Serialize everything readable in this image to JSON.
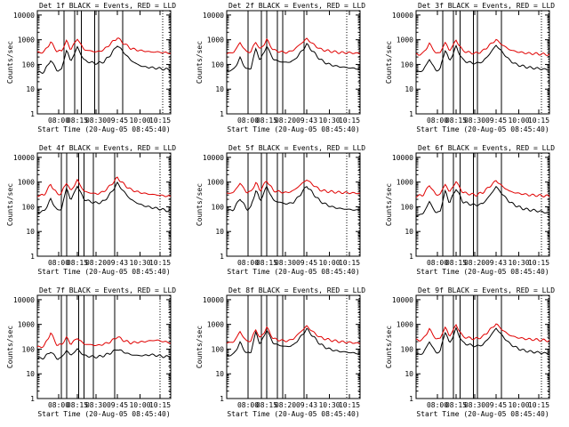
{
  "figure": {
    "start_time_label": "Start Time (20-Aug-05 08:45:40)",
    "ylabel": "Counts/sec",
    "y_ticks": [
      "1",
      "10",
      "100",
      "1000",
      "10000"
    ],
    "x_ticks": [
      "08:00",
      "08:15",
      "08:30",
      "09:45",
      "10:00",
      "10:15"
    ],
    "x_ticks_alt": [
      "08:00",
      "08:15",
      "08:20",
      "09:43",
      "10:30",
      "10:15"
    ],
    "colors": {
      "events": "#000000",
      "lld": "#e00000"
    }
  },
  "chart_data": [
    {
      "type": "line",
      "title": "Det 1f BLACK = Events, RED = LLD",
      "ylim": [
        1,
        15000
      ],
      "yscale": "log",
      "xlabel": "Start Time (20-Aug-05 08:45:40)",
      "ylabel": "Counts/sec",
      "x": [
        0,
        0.05,
        0.1,
        0.15,
        0.18,
        0.22,
        0.25,
        0.3,
        0.35,
        0.4,
        0.45,
        0.5,
        0.55,
        0.6,
        0.65,
        0.7,
        0.75,
        0.8,
        0.85,
        0.9,
        0.95,
        1
      ],
      "series": [
        {
          "name": "Events",
          "color": "#000000",
          "values": [
            45,
            50,
            150,
            55,
            60,
            400,
            130,
            500,
            150,
            120,
            110,
            130,
            250,
            600,
            300,
            150,
            100,
            80,
            75,
            70,
            65,
            60
          ]
        },
        {
          "name": "LLD",
          "color": "#e00000",
          "values": [
            300,
            320,
            800,
            330,
            350,
            900,
            400,
            1100,
            400,
            350,
            320,
            400,
            700,
            1200,
            700,
            450,
            380,
            350,
            320,
            320,
            300,
            290
          ]
        }
      ],
      "vlines": [
        0.2,
        0.28,
        0.33,
        0.43,
        0.46,
        0.64,
        0.94
      ]
    },
    {
      "type": "line",
      "title": "Det 2f BLACK = Events, RED = LLD",
      "ylim": [
        1,
        15000
      ],
      "yscale": "log",
      "xlabel": "Start Time (20-Aug-05 08:45:40)",
      "ylabel": "Counts/sec",
      "x": [
        0,
        0.05,
        0.1,
        0.15,
        0.18,
        0.22,
        0.25,
        0.3,
        0.35,
        0.4,
        0.45,
        0.5,
        0.55,
        0.6,
        0.65,
        0.7,
        0.75,
        0.8,
        0.85,
        0.9,
        0.95,
        1
      ],
      "series": [
        {
          "name": "Events",
          "color": "#000000",
          "values": [
            55,
            60,
            180,
            60,
            70,
            450,
            140,
            550,
            160,
            130,
            120,
            140,
            280,
            650,
            320,
            160,
            110,
            90,
            80,
            75,
            70,
            65
          ]
        },
        {
          "name": "LLD",
          "color": "#e00000",
          "values": [
            280,
            300,
            750,
            310,
            330,
            850,
            380,
            1000,
            380,
            330,
            300,
            380,
            650,
            1100,
            650,
            420,
            360,
            330,
            300,
            300,
            290,
            280
          ]
        }
      ],
      "vlines": [
        0.16,
        0.26,
        0.3,
        0.38,
        0.42,
        0.58,
        0.9
      ]
    },
    {
      "type": "line",
      "title": "Det 3f BLACK = Events, RED = LLD",
      "ylim": [
        1,
        15000
      ],
      "yscale": "log",
      "xlabel": "Start Time (20-Aug-05 08:45:40)",
      "ylabel": "Counts/sec",
      "x": [
        0,
        0.05,
        0.1,
        0.15,
        0.18,
        0.22,
        0.25,
        0.3,
        0.35,
        0.4,
        0.45,
        0.5,
        0.55,
        0.6,
        0.65,
        0.7,
        0.75,
        0.8,
        0.85,
        0.9,
        0.95,
        1
      ],
      "series": [
        {
          "name": "Events",
          "color": "#000000",
          "values": [
            50,
            55,
            160,
            55,
            65,
            420,
            130,
            520,
            150,
            120,
            110,
            130,
            260,
            600,
            300,
            150,
            100,
            85,
            75,
            70,
            65,
            60
          ]
        },
        {
          "name": "LLD",
          "color": "#e00000",
          "values": [
            250,
            270,
            700,
            280,
            300,
            800,
            350,
            950,
            360,
            300,
            280,
            350,
            600,
            1000,
            600,
            400,
            330,
            300,
            280,
            270,
            260,
            250
          ]
        }
      ],
      "vlines": [
        0.2,
        0.28,
        0.33,
        0.43,
        0.46,
        0.64,
        0.94
      ]
    },
    {
      "type": "line",
      "title": "Det 4f BLACK = Events, RED = LLD",
      "ylim": [
        1,
        15000
      ],
      "yscale": "log",
      "xlabel": "Start Time (20-Aug-05 08:45:40)",
      "ylabel": "Counts/sec",
      "x": [
        0,
        0.05,
        0.1,
        0.15,
        0.18,
        0.22,
        0.25,
        0.3,
        0.35,
        0.4,
        0.45,
        0.5,
        0.55,
        0.6,
        0.65,
        0.7,
        0.75,
        0.8,
        0.85,
        0.9,
        0.95,
        1
      ],
      "series": [
        {
          "name": "Events",
          "color": "#000000",
          "values": [
            60,
            65,
            200,
            70,
            80,
            600,
            180,
            700,
            200,
            160,
            140,
            170,
            350,
            900,
            400,
            200,
            140,
            110,
            95,
            85,
            75,
            65
          ]
        },
        {
          "name": "LLD",
          "color": "#e00000",
          "values": [
            280,
            300,
            800,
            320,
            350,
            1000,
            420,
            1200,
            420,
            360,
            330,
            420,
            750,
            1500,
            800,
            500,
            400,
            350,
            320,
            300,
            280,
            260
          ]
        }
      ],
      "vlines": [
        0.18,
        0.22,
        0.31,
        0.35,
        0.42,
        0.58,
        0.92
      ]
    },
    {
      "type": "line",
      "title": "Det 5f BLACK = Events, RED = LLD",
      "ylim": [
        1,
        15000
      ],
      "yscale": "log",
      "xlabel": "Start Time (20-Aug-05 08:45:40)",
      "ylabel": "Counts/sec",
      "x": [
        0,
        0.05,
        0.1,
        0.15,
        0.18,
        0.22,
        0.25,
        0.3,
        0.35,
        0.4,
        0.45,
        0.5,
        0.55,
        0.6,
        0.65,
        0.7,
        0.75,
        0.8,
        0.85,
        0.9,
        0.95,
        1
      ],
      "series": [
        {
          "name": "Events",
          "color": "#000000",
          "values": [
            70,
            75,
            220,
            80,
            90,
            500,
            170,
            650,
            180,
            150,
            130,
            150,
            300,
            700,
            330,
            170,
            120,
            95,
            85,
            80,
            75,
            70
          ]
        },
        {
          "name": "LLD",
          "color": "#e00000",
          "values": [
            350,
            370,
            900,
            380,
            400,
            950,
            450,
            1150,
            450,
            400,
            370,
            450,
            750,
            1250,
            750,
            480,
            420,
            400,
            380,
            370,
            360,
            350
          ]
        }
      ],
      "vlines": [
        0.16,
        0.26,
        0.3,
        0.38,
        0.42,
        0.58,
        0.9
      ]
    },
    {
      "type": "line",
      "title": "Det 6f BLACK = Events, RED = LLD",
      "ylim": [
        1,
        15000
      ],
      "yscale": "log",
      "xlabel": "Start Time (20-Aug-05 08:45:40)",
      "ylabel": "Counts/sec",
      "x": [
        0,
        0.05,
        0.1,
        0.15,
        0.18,
        0.22,
        0.25,
        0.3,
        0.35,
        0.4,
        0.45,
        0.5,
        0.55,
        0.6,
        0.65,
        0.7,
        0.75,
        0.8,
        0.85,
        0.9,
        0.95,
        1
      ],
      "series": [
        {
          "name": "Events",
          "color": "#000000",
          "values": [
            45,
            50,
            160,
            55,
            65,
            450,
            140,
            550,
            160,
            130,
            115,
            135,
            270,
            650,
            310,
            160,
            110,
            85,
            75,
            70,
            62,
            55
          ]
        },
        {
          "name": "LLD",
          "color": "#e00000",
          "values": [
            270,
            290,
            750,
            300,
            320,
            850,
            380,
            1050,
            380,
            330,
            300,
            380,
            650,
            1150,
            650,
            430,
            360,
            330,
            300,
            290,
            280,
            270
          ]
        }
      ],
      "vlines": [
        0.2,
        0.28,
        0.33,
        0.43,
        0.46,
        0.64,
        0.94
      ]
    },
    {
      "type": "line",
      "title": "Det 7f BLACK = Events, RED = LLD",
      "ylim": [
        1,
        15000
      ],
      "yscale": "log",
      "xlabel": "Start Time (20-Aug-05 08:45:40)",
      "ylabel": "Counts/sec",
      "x": [
        0,
        0.05,
        0.1,
        0.15,
        0.18,
        0.22,
        0.25,
        0.3,
        0.35,
        0.4,
        0.45,
        0.5,
        0.55,
        0.6,
        0.65,
        0.7,
        0.75,
        0.8,
        0.85,
        0.9,
        0.95,
        1
      ],
      "series": [
        {
          "name": "Events",
          "color": "#000000",
          "values": [
            40,
            45,
            80,
            40,
            45,
            90,
            55,
            100,
            55,
            50,
            48,
            55,
            70,
            100,
            75,
            60,
            55,
            55,
            60,
            55,
            50,
            48
          ]
        },
        {
          "name": "LLD",
          "color": "#e00000",
          "values": [
            120,
            130,
            450,
            140,
            150,
            300,
            160,
            280,
            160,
            150,
            140,
            160,
            200,
            320,
            220,
            180,
            190,
            200,
            220,
            230,
            200,
            180
          ]
        }
      ],
      "vlines": [
        0.18,
        0.22,
        0.31,
        0.35,
        0.42,
        0.58,
        0.92
      ]
    },
    {
      "type": "line",
      "title": "Det 8f BLACK = Events, RED = LLD",
      "ylim": [
        1,
        15000
      ],
      "yscale": "log",
      "xlabel": "Start Time (20-Aug-05 08:45:40)",
      "ylabel": "Counts/sec",
      "x": [
        0,
        0.05,
        0.1,
        0.15,
        0.18,
        0.22,
        0.25,
        0.3,
        0.35,
        0.4,
        0.45,
        0.5,
        0.55,
        0.6,
        0.65,
        0.7,
        0.75,
        0.8,
        0.85,
        0.9,
        0.95,
        1
      ],
      "series": [
        {
          "name": "Events",
          "color": "#000000",
          "values": [
            55,
            60,
            180,
            65,
            75,
            500,
            150,
            600,
            170,
            140,
            125,
            145,
            290,
            650,
            320,
            160,
            110,
            90,
            80,
            75,
            70,
            65
          ]
        },
        {
          "name": "LLD",
          "color": "#e00000",
          "values": [
            180,
            190,
            500,
            200,
            220,
            650,
            260,
            750,
            260,
            230,
            210,
            260,
            480,
            850,
            480,
            300,
            250,
            220,
            200,
            190,
            180,
            170
          ]
        }
      ],
      "vlines": [
        0.16,
        0.26,
        0.3,
        0.38,
        0.42,
        0.58,
        0.9
      ]
    },
    {
      "type": "line",
      "title": "Det 9f BLACK = Events, RED = LLD",
      "ylim": [
        1,
        15000
      ],
      "yscale": "log",
      "xlabel": "Start Time (20-Aug-05 08:45:40)",
      "ylabel": "Counts/sec",
      "x": [
        0,
        0.05,
        0.1,
        0.15,
        0.18,
        0.22,
        0.25,
        0.3,
        0.35,
        0.4,
        0.45,
        0.5,
        0.55,
        0.6,
        0.65,
        0.7,
        0.75,
        0.8,
        0.85,
        0.9,
        0.95,
        1
      ],
      "series": [
        {
          "name": "Events",
          "color": "#000000",
          "values": [
            60,
            65,
            200,
            70,
            80,
            550,
            160,
            650,
            180,
            150,
            130,
            150,
            300,
            700,
            330,
            170,
            115,
            90,
            80,
            75,
            70,
            65
          ]
        },
        {
          "name": "LLD",
          "color": "#e00000",
          "values": [
            230,
            240,
            650,
            250,
            270,
            800,
            320,
            950,
            320,
            280,
            260,
            320,
            580,
            1050,
            580,
            370,
            300,
            270,
            250,
            240,
            230,
            220
          ]
        }
      ],
      "vlines": [
        0.2,
        0.28,
        0.33,
        0.43,
        0.46,
        0.64,
        0.94
      ]
    }
  ]
}
